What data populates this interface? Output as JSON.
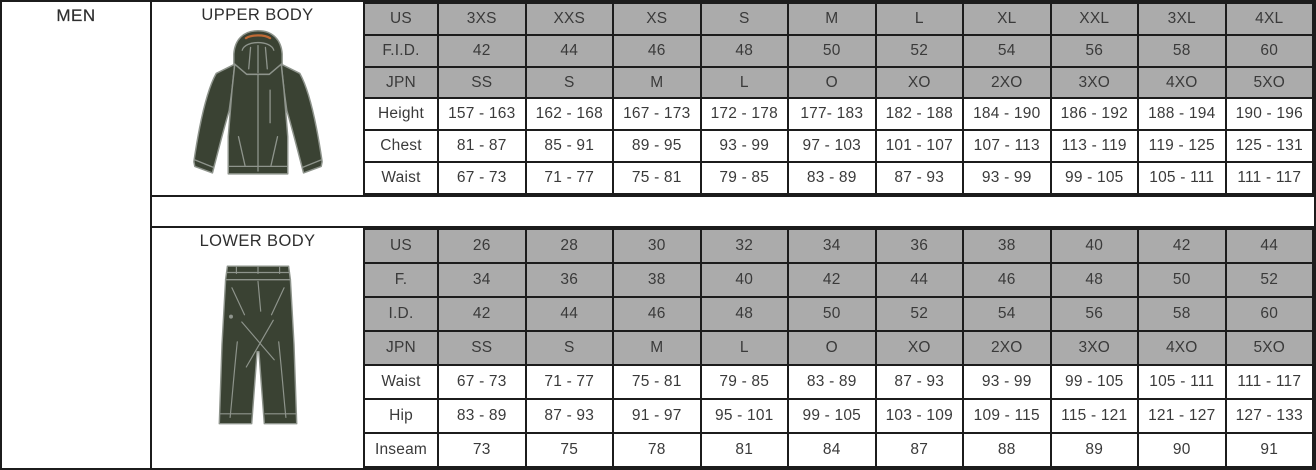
{
  "page": {
    "category_label": "MEN"
  },
  "upper": {
    "title": "UPPER BODY",
    "garment_icon": "jacket-illustration",
    "rows": [
      {
        "label": "US",
        "shaded": true,
        "values": [
          "3XS",
          "XXS",
          "XS",
          "S",
          "M",
          "L",
          "XL",
          "XXL",
          "3XL",
          "4XL"
        ]
      },
      {
        "label": "F.I.D.",
        "shaded": true,
        "values": [
          "42",
          "44",
          "46",
          "48",
          "50",
          "52",
          "54",
          "56",
          "58",
          "60"
        ]
      },
      {
        "label": "JPN",
        "shaded": true,
        "values": [
          "SS",
          "S",
          "M",
          "L",
          "O",
          "XO",
          "2XO",
          "3XO",
          "4XO",
          "5XO"
        ]
      },
      {
        "label": "Height",
        "shaded": false,
        "values": [
          "157 - 163",
          "162 - 168",
          "167 - 173",
          "172 - 178",
          "177- 183",
          "182 - 188",
          "184 - 190",
          "186 - 192",
          "188 - 194",
          "190 - 196"
        ]
      },
      {
        "label": "Chest",
        "shaded": false,
        "values": [
          "81 - 87",
          "85 - 91",
          "89 - 95",
          "93 - 99",
          "97 - 103",
          "101 - 107",
          "107 - 113",
          "113 - 119",
          "119 - 125",
          "125 - 131"
        ]
      },
      {
        "label": "Waist",
        "shaded": false,
        "values": [
          "67 - 73",
          "71 - 77",
          "75 - 81",
          "79 - 85",
          "83 - 89",
          "87 - 93",
          "93 - 99",
          "99 - 105",
          "105 - 111",
          "111 - 117"
        ]
      }
    ]
  },
  "lower": {
    "title": "LOWER BODY",
    "garment_icon": "pants-illustration",
    "rows": [
      {
        "label": "US",
        "shaded": true,
        "values": [
          "26",
          "28",
          "30",
          "32",
          "34",
          "36",
          "38",
          "40",
          "42",
          "44"
        ]
      },
      {
        "label": "F.",
        "shaded": true,
        "values": [
          "34",
          "36",
          "38",
          "40",
          "42",
          "44",
          "46",
          "48",
          "50",
          "52"
        ]
      },
      {
        "label": "I.D.",
        "shaded": true,
        "values": [
          "42",
          "44",
          "46",
          "48",
          "50",
          "52",
          "54",
          "56",
          "58",
          "60"
        ]
      },
      {
        "label": "JPN",
        "shaded": true,
        "values": [
          "SS",
          "S",
          "M",
          "L",
          "O",
          "XO",
          "2XO",
          "3XO",
          "4XO",
          "5XO"
        ]
      },
      {
        "label": "Waist",
        "shaded": false,
        "values": [
          "67 - 73",
          "71 - 77",
          "75 - 81",
          "79 - 85",
          "83 - 89",
          "87 - 93",
          "93 - 99",
          "99 - 105",
          "105 - 111",
          "111 - 117"
        ]
      },
      {
        "label": "Hip",
        "shaded": false,
        "values": [
          "83 - 89",
          "87 - 93",
          "91 - 97",
          "95 - 101",
          "99 - 105",
          "103 - 109",
          "109 - 115",
          "115 - 121",
          "121 - 127",
          "127 - 133"
        ]
      },
      {
        "label": "Inseam",
        "shaded": false,
        "values": [
          "73",
          "75",
          "78",
          "81",
          "84",
          "87",
          "88",
          "89",
          "90",
          "91"
        ]
      }
    ]
  },
  "colors": {
    "shaded_cell": "#ababab",
    "border": "#1c1c1c",
    "text": "#3a3a3a",
    "garment_fill": "#3a4233",
    "garment_outline": "#8e948c",
    "hood_accent": "#bf6a35"
  }
}
